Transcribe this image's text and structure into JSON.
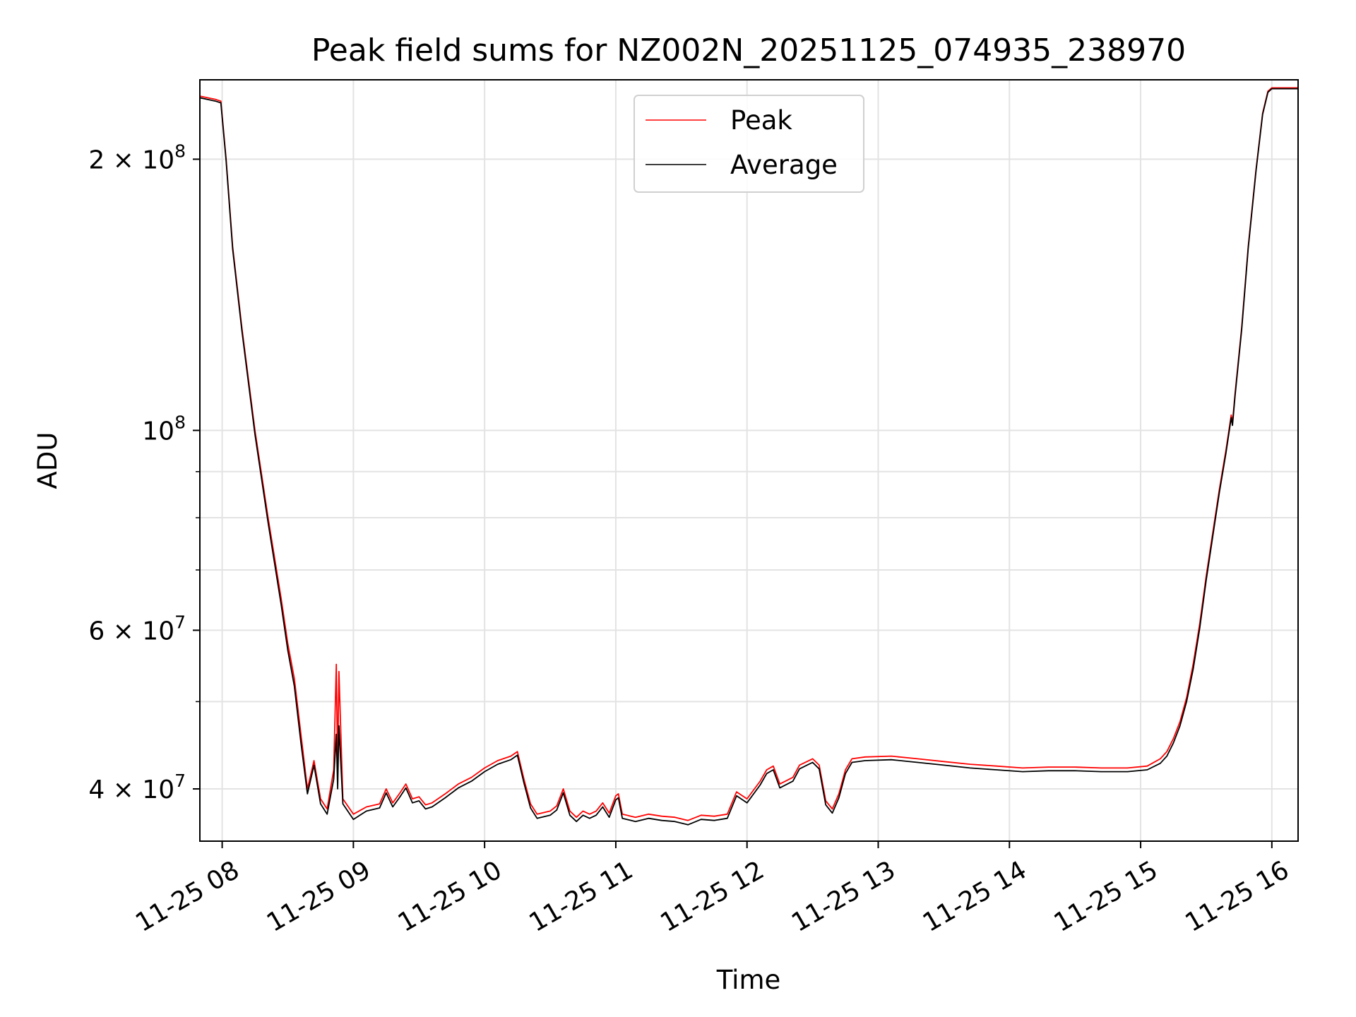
{
  "chart_data": {
    "type": "line",
    "title": "Peak field sums for NZ002N_20251125_074935_238970",
    "xlabel": "Time",
    "ylabel": "ADU",
    "yscale": "log",
    "ylim": [
      35000000,
      245000000
    ],
    "xlim_hours": [
      7.83,
      16.2
    ],
    "grid": true,
    "legend_position": "upper center",
    "x_ticks": [
      {
        "value": 8,
        "label": "11-25 08"
      },
      {
        "value": 9,
        "label": "11-25 09"
      },
      {
        "value": 10,
        "label": "11-25 10"
      },
      {
        "value": 11,
        "label": "11-25 11"
      },
      {
        "value": 12,
        "label": "11-25 12"
      },
      {
        "value": 13,
        "label": "11-25 13"
      },
      {
        "value": 14,
        "label": "11-25 14"
      },
      {
        "value": 15,
        "label": "11-25 15"
      },
      {
        "value": 16,
        "label": "11-25 16"
      }
    ],
    "y_ticks": [
      {
        "value": 40000000,
        "mantissa": "4 × 10",
        "exp": "7"
      },
      {
        "value": 60000000,
        "mantissa": "6 × 10",
        "exp": "7"
      },
      {
        "value": 100000000,
        "mantissa": "10",
        "exp": "8"
      },
      {
        "value": 200000000,
        "mantissa": "2 × 10",
        "exp": "8"
      }
    ],
    "y_minor_ticks": [
      50000000,
      70000000,
      80000000,
      90000000
    ],
    "series": [
      {
        "name": "Peak",
        "color": "#ff0000",
        "points": [
          [
            7.83,
            235000000
          ],
          [
            7.95,
            233000000
          ],
          [
            7.99,
            232000000
          ],
          [
            8.03,
            200000000
          ],
          [
            8.08,
            160000000
          ],
          [
            8.15,
            130000000
          ],
          [
            8.25,
            100000000
          ],
          [
            8.35,
            80000000
          ],
          [
            8.45,
            65000000
          ],
          [
            8.5,
            58000000
          ],
          [
            8.55,
            53000000
          ],
          [
            8.6,
            46000000
          ],
          [
            8.65,
            40000000
          ],
          [
            8.7,
            43000000
          ],
          [
            8.75,
            39000000
          ],
          [
            8.8,
            38000000
          ],
          [
            8.85,
            42000000
          ],
          [
            8.87,
            55000000
          ],
          [
            8.88,
            42000000
          ],
          [
            8.89,
            54000000
          ],
          [
            8.92,
            39000000
          ],
          [
            9.0,
            37500000
          ],
          [
            9.1,
            38200000
          ],
          [
            9.2,
            38500000
          ],
          [
            9.25,
            40000000
          ],
          [
            9.3,
            38600000
          ],
          [
            9.35,
            39500000
          ],
          [
            9.4,
            40500000
          ],
          [
            9.45,
            39000000
          ],
          [
            9.5,
            39200000
          ],
          [
            9.55,
            38400000
          ],
          [
            9.6,
            38600000
          ],
          [
            9.7,
            39500000
          ],
          [
            9.8,
            40500000
          ],
          [
            9.9,
            41200000
          ],
          [
            10.0,
            42200000
          ],
          [
            10.1,
            43000000
          ],
          [
            10.2,
            43500000
          ],
          [
            10.25,
            44000000
          ],
          [
            10.3,
            41000000
          ],
          [
            10.35,
            38500000
          ],
          [
            10.4,
            37500000
          ],
          [
            10.5,
            37800000
          ],
          [
            10.55,
            38300000
          ],
          [
            10.6,
            40000000
          ],
          [
            10.65,
            37800000
          ],
          [
            10.7,
            37200000
          ],
          [
            10.75,
            37800000
          ],
          [
            10.8,
            37500000
          ],
          [
            10.85,
            37800000
          ],
          [
            10.9,
            38600000
          ],
          [
            10.95,
            37600000
          ],
          [
            11.0,
            39300000
          ],
          [
            11.02,
            39500000
          ],
          [
            11.05,
            37500000
          ],
          [
            11.15,
            37200000
          ],
          [
            11.25,
            37500000
          ],
          [
            11.35,
            37300000
          ],
          [
            11.45,
            37200000
          ],
          [
            11.55,
            36900000
          ],
          [
            11.65,
            37400000
          ],
          [
            11.75,
            37300000
          ],
          [
            11.85,
            37500000
          ],
          [
            11.92,
            39700000
          ],
          [
            12.0,
            39000000
          ],
          [
            12.1,
            40800000
          ],
          [
            12.15,
            42000000
          ],
          [
            12.2,
            42400000
          ],
          [
            12.25,
            40500000
          ],
          [
            12.35,
            41200000
          ],
          [
            12.4,
            42500000
          ],
          [
            12.5,
            43200000
          ],
          [
            12.55,
            42500000
          ],
          [
            12.6,
            38800000
          ],
          [
            12.65,
            38000000
          ],
          [
            12.7,
            39500000
          ],
          [
            12.75,
            42000000
          ],
          [
            12.8,
            43200000
          ],
          [
            12.9,
            43400000
          ],
          [
            13.1,
            43500000
          ],
          [
            13.3,
            43200000
          ],
          [
            13.5,
            42900000
          ],
          [
            13.7,
            42600000
          ],
          [
            13.9,
            42400000
          ],
          [
            14.1,
            42200000
          ],
          [
            14.3,
            42300000
          ],
          [
            14.5,
            42300000
          ],
          [
            14.7,
            42200000
          ],
          [
            14.9,
            42200000
          ],
          [
            15.05,
            42400000
          ],
          [
            15.15,
            43200000
          ],
          [
            15.2,
            44000000
          ],
          [
            15.25,
            45500000
          ],
          [
            15.3,
            47500000
          ],
          [
            15.35,
            50500000
          ],
          [
            15.4,
            55000000
          ],
          [
            15.45,
            61000000
          ],
          [
            15.5,
            69000000
          ],
          [
            15.55,
            77000000
          ],
          [
            15.6,
            86000000
          ],
          [
            15.65,
            95000000
          ],
          [
            15.69,
            104000000
          ],
          [
            15.7,
            102000000
          ],
          [
            15.72,
            110000000
          ],
          [
            15.77,
            130000000
          ],
          [
            15.82,
            160000000
          ],
          [
            15.88,
            195000000
          ],
          [
            15.93,
            225000000
          ],
          [
            15.97,
            238000000
          ],
          [
            16.0,
            240000000
          ],
          [
            16.2,
            240000000
          ]
        ]
      },
      {
        "name": "Average",
        "color": "#000000",
        "points": [
          [
            7.83,
            234000000
          ],
          [
            7.95,
            232000000
          ],
          [
            7.99,
            231000000
          ],
          [
            8.03,
            199000000
          ],
          [
            8.08,
            159000000
          ],
          [
            8.15,
            129000000
          ],
          [
            8.25,
            99000000
          ],
          [
            8.35,
            79000000
          ],
          [
            8.45,
            64000000
          ],
          [
            8.5,
            57000000
          ],
          [
            8.55,
            52000000
          ],
          [
            8.6,
            45000000
          ],
          [
            8.65,
            39500000
          ],
          [
            8.7,
            42500000
          ],
          [
            8.75,
            38500000
          ],
          [
            8.8,
            37500000
          ],
          [
            8.85,
            41000000
          ],
          [
            8.87,
            46000000
          ],
          [
            8.88,
            40000000
          ],
          [
            8.89,
            47000000
          ],
          [
            8.92,
            38500000
          ],
          [
            9.0,
            37000000
          ],
          [
            9.1,
            37800000
          ],
          [
            9.2,
            38100000
          ],
          [
            9.25,
            39600000
          ],
          [
            9.3,
            38200000
          ],
          [
            9.35,
            39100000
          ],
          [
            9.4,
            40100000
          ],
          [
            9.45,
            38600000
          ],
          [
            9.5,
            38800000
          ],
          [
            9.55,
            38000000
          ],
          [
            9.6,
            38200000
          ],
          [
            9.7,
            39100000
          ],
          [
            9.8,
            40100000
          ],
          [
            9.9,
            40800000
          ],
          [
            10.0,
            41800000
          ],
          [
            10.1,
            42600000
          ],
          [
            10.2,
            43100000
          ],
          [
            10.25,
            43600000
          ],
          [
            10.3,
            40600000
          ],
          [
            10.35,
            38100000
          ],
          [
            10.4,
            37100000
          ],
          [
            10.5,
            37400000
          ],
          [
            10.55,
            37900000
          ],
          [
            10.6,
            39600000
          ],
          [
            10.65,
            37400000
          ],
          [
            10.7,
            36800000
          ],
          [
            10.75,
            37400000
          ],
          [
            10.8,
            37100000
          ],
          [
            10.85,
            37400000
          ],
          [
            10.9,
            38200000
          ],
          [
            10.95,
            37200000
          ],
          [
            11.0,
            38900000
          ],
          [
            11.02,
            39100000
          ],
          [
            11.05,
            37100000
          ],
          [
            11.15,
            36800000
          ],
          [
            11.25,
            37100000
          ],
          [
            11.35,
            36900000
          ],
          [
            11.45,
            36800000
          ],
          [
            11.55,
            36500000
          ],
          [
            11.65,
            37000000
          ],
          [
            11.75,
            36900000
          ],
          [
            11.85,
            37100000
          ],
          [
            11.92,
            39300000
          ],
          [
            12.0,
            38600000
          ],
          [
            12.1,
            40400000
          ],
          [
            12.15,
            41600000
          ],
          [
            12.2,
            42000000
          ],
          [
            12.25,
            40100000
          ],
          [
            12.35,
            40800000
          ],
          [
            12.4,
            42100000
          ],
          [
            12.5,
            42800000
          ],
          [
            12.55,
            42100000
          ],
          [
            12.6,
            38400000
          ],
          [
            12.65,
            37600000
          ],
          [
            12.7,
            39100000
          ],
          [
            12.75,
            41600000
          ],
          [
            12.8,
            42800000
          ],
          [
            12.9,
            43000000
          ],
          [
            13.1,
            43100000
          ],
          [
            13.3,
            42800000
          ],
          [
            13.5,
            42500000
          ],
          [
            13.7,
            42200000
          ],
          [
            13.9,
            42000000
          ],
          [
            14.1,
            41800000
          ],
          [
            14.3,
            41900000
          ],
          [
            14.5,
            41900000
          ],
          [
            14.7,
            41800000
          ],
          [
            14.9,
            41800000
          ],
          [
            15.05,
            42000000
          ],
          [
            15.15,
            42700000
          ],
          [
            15.2,
            43500000
          ],
          [
            15.25,
            45000000
          ],
          [
            15.3,
            47000000
          ],
          [
            15.35,
            50000000
          ],
          [
            15.4,
            54300000
          ],
          [
            15.45,
            60300000
          ],
          [
            15.5,
            68300000
          ],
          [
            15.55,
            76300000
          ],
          [
            15.6,
            85300000
          ],
          [
            15.65,
            94300000
          ],
          [
            15.69,
            103300000
          ],
          [
            15.7,
            101300000
          ],
          [
            15.72,
            109300000
          ],
          [
            15.77,
            129300000
          ],
          [
            15.82,
            159300000
          ],
          [
            15.88,
            194300000
          ],
          [
            15.93,
            224300000
          ],
          [
            15.97,
            237300000
          ],
          [
            16.0,
            239500000
          ],
          [
            16.2,
            239500000
          ]
        ]
      }
    ]
  }
}
